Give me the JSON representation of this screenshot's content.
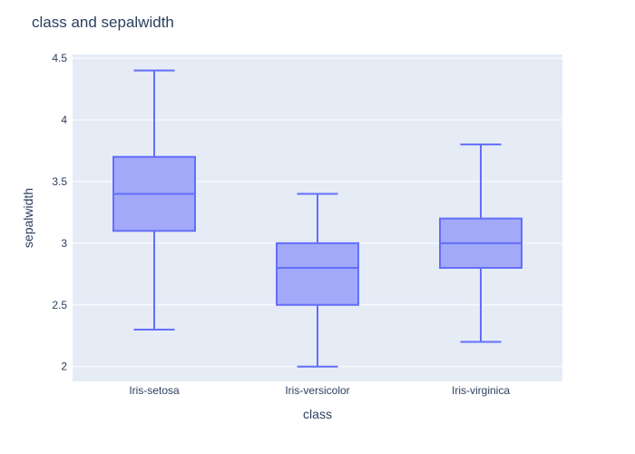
{
  "colors": {
    "plot_bg": "#e5ecf6",
    "grid": "#ffffff",
    "box_line": "#636efa",
    "box_fill": "#a3a9f9",
    "text": "#2a3f5f"
  },
  "chart_data": {
    "type": "box",
    "title": "class and sepalwidth",
    "xlabel": "class",
    "ylabel": "sepalwidth",
    "categories": [
      "Iris-setosa",
      "Iris-versicolor",
      "Iris-virginica"
    ],
    "ylim": [
      1.88,
      4.53
    ],
    "yticks": [
      2,
      2.5,
      3,
      3.5,
      4,
      4.5
    ],
    "ytick_labels": [
      "2",
      "2.5",
      "3",
      "3.5",
      "4",
      "4.5"
    ],
    "grid": true,
    "boxes": [
      {
        "category": "Iris-setosa",
        "min": 2.3,
        "q1": 3.1,
        "median": 3.4,
        "q3": 3.7,
        "max": 4.4
      },
      {
        "category": "Iris-versicolor",
        "min": 2.0,
        "q1": 2.5,
        "median": 2.8,
        "q3": 3.0,
        "max": 3.4
      },
      {
        "category": "Iris-virginica",
        "min": 2.2,
        "q1": 2.8,
        "median": 3.0,
        "q3": 3.2,
        "max": 3.8
      }
    ]
  }
}
